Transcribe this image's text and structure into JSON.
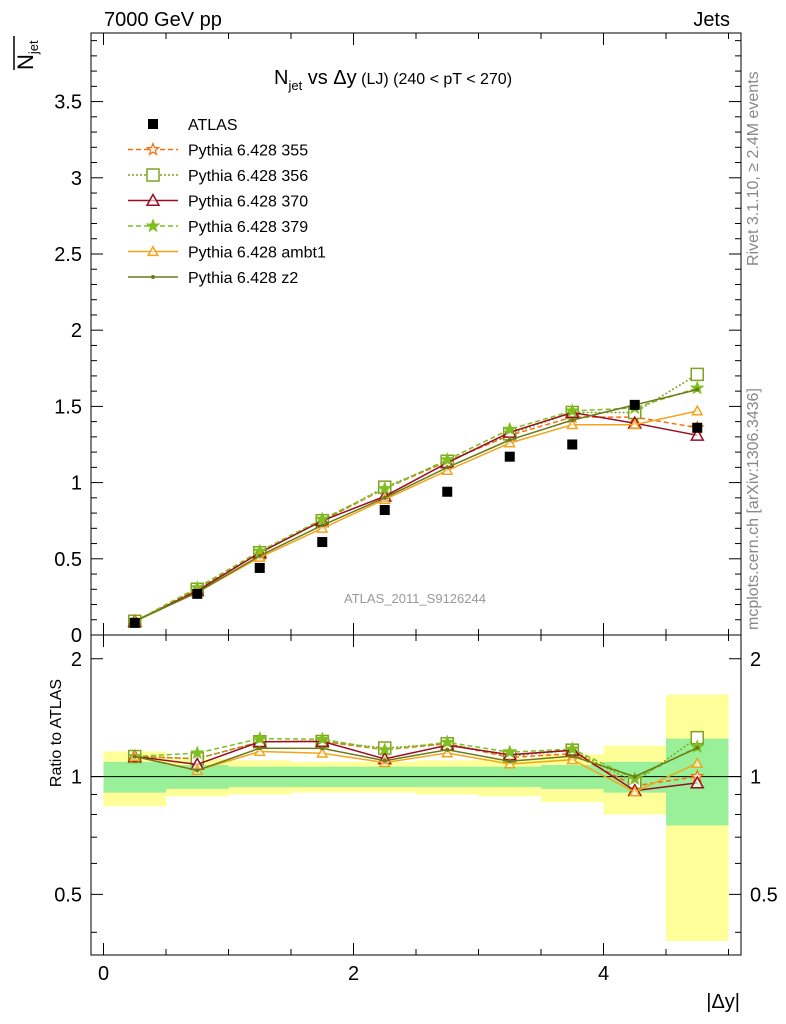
{
  "header": {
    "energy_label": "7000 GeV pp",
    "process_label": "Jets"
  },
  "side": {
    "rivet_label": "Rivet 3.1.10, ≥ 2.4M events",
    "mcplots_label": "mcplots.cern.ch [arXiv:1306.3436]"
  },
  "chart_data": {
    "type": "scatter",
    "title_main": "N",
    "title_sub": "jet",
    "title_vs": " vs Δy",
    "title_small": " (LJ) (240 < pT < 270)",
    "ylabel_top_main": "N",
    "ylabel_top_sub": "jet",
    "ylabel_bottom": "Ratio to ATLAS",
    "xlabel": "|Δy|",
    "watermark": "ATLAS_2011_S9126244",
    "xlim": [
      -0.1,
      5.1
    ],
    "ylim_top": [
      0,
      3.95
    ],
    "ylim_bottom": [
      0.35,
      2.3
    ],
    "xticks": [
      "0",
      "2",
      "4"
    ],
    "yticks_top": [
      "0",
      "0.5",
      "1",
      "1.5",
      "2",
      "2.5",
      "3",
      "3.5"
    ],
    "yticks_bottom": [
      "0.5",
      "1",
      "2"
    ],
    "x": [
      0.25,
      0.75,
      1.25,
      1.75,
      2.25,
      2.75,
      3.25,
      3.75,
      4.25,
      4.75
    ],
    "data": {
      "name": "ATLAS",
      "values": [
        0.08,
        0.27,
        0.44,
        0.61,
        0.82,
        0.94,
        1.17,
        1.25,
        1.51,
        1.36
      ],
      "band_inner": [
        0.09,
        0.07,
        0.06,
        0.06,
        0.06,
        0.06,
        0.06,
        0.07,
        0.09,
        0.25
      ],
      "band_outer": [
        0.16,
        0.11,
        0.1,
        0.09,
        0.09,
        0.1,
        0.11,
        0.14,
        0.2,
        0.62
      ]
    },
    "legend": [
      "ATLAS",
      "Pythia 6.428 355",
      "Pythia 6.428 356",
      "Pythia 6.428 370",
      "Pythia 6.428 379",
      "Pythia 6.428 ambt1",
      "Pythia 6.428 z2"
    ],
    "series": [
      {
        "name": "Pythia 6.428 355",
        "color": "#ff6a0d",
        "dash": "5,3",
        "marker": "star-open",
        "values": [
          0.09,
          0.3,
          0.54,
          0.75,
          0.96,
          1.14,
          1.31,
          1.43,
          1.43,
          1.36
        ]
      },
      {
        "name": "Pythia 6.428 356",
        "color": "#7fa31f",
        "dash": "2,2",
        "marker": "square-open",
        "values": [
          0.09,
          0.3,
          0.54,
          0.75,
          0.97,
          1.14,
          1.32,
          1.46,
          1.46,
          1.71
        ]
      },
      {
        "name": "Pythia 6.428 370",
        "color": "#9b0d20",
        "dash": "",
        "marker": "triangle-open",
        "values": [
          0.09,
          0.29,
          0.54,
          0.75,
          0.91,
          1.13,
          1.33,
          1.46,
          1.39,
          1.31
        ]
      },
      {
        "name": "Pythia 6.428 379",
        "color": "#7fbf1f",
        "dash": "5,3",
        "marker": "star-filled",
        "values": [
          0.09,
          0.31,
          0.55,
          0.76,
          0.96,
          1.15,
          1.35,
          1.47,
          1.49,
          1.62
        ]
      },
      {
        "name": "Pythia 6.428 ambt1",
        "color": "#f2a51a",
        "dash": "",
        "marker": "triangle-small",
        "values": [
          0.09,
          0.28,
          0.51,
          0.7,
          0.89,
          1.08,
          1.26,
          1.38,
          1.38,
          1.47
        ]
      },
      {
        "name": "Pythia 6.428 z2",
        "color": "#6b7a1a",
        "dash": "",
        "marker": "dot",
        "values": [
          0.09,
          0.28,
          0.52,
          0.72,
          0.9,
          1.1,
          1.28,
          1.41,
          1.51,
          1.61
        ]
      }
    ]
  }
}
